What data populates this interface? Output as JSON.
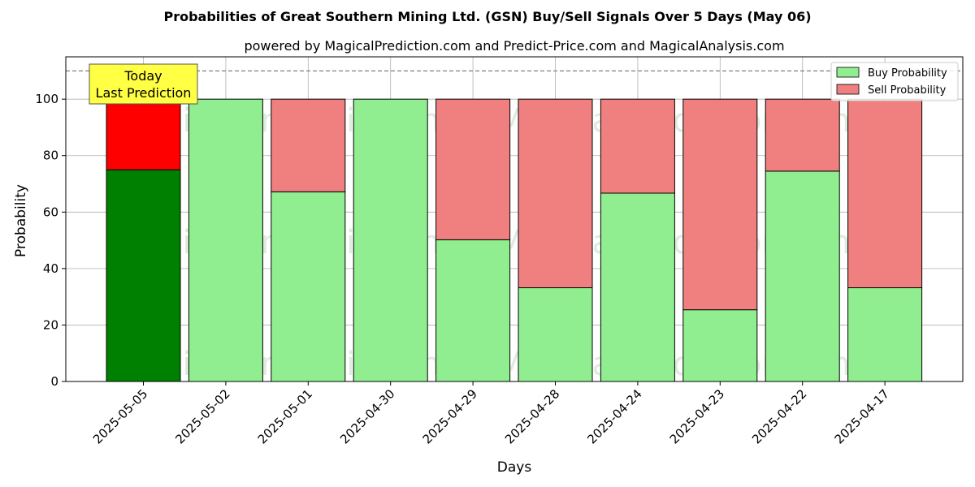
{
  "chart_data": {
    "type": "bar",
    "stacked": true,
    "title": "Probabilities of Great Southern Mining Ltd. (GSN) Buy/Sell Signals Over 5 Days (May 06)",
    "subtitle": "powered by MagicalPrediction.com and Predict-Price.com and MagicalAnalysis.com",
    "xlabel": "Days",
    "ylabel": "Probability",
    "ylim": [
      0,
      115
    ],
    "yticks": [
      0,
      20,
      40,
      60,
      80,
      100
    ],
    "reference_line": 110,
    "grid": true,
    "legend_position": "top-right",
    "categories": [
      "2025-05-05",
      "2025-05-02",
      "2025-05-01",
      "2025-04-30",
      "2025-04-29",
      "2025-04-28",
      "2025-04-24",
      "2025-04-23",
      "2025-04-22",
      "2025-04-17"
    ],
    "series": [
      {
        "name": "Buy Probability",
        "values": [
          75,
          100,
          67.2,
          100,
          50.2,
          33.2,
          66.7,
          25.4,
          74.5,
          33.2
        ],
        "color": "#90ee90",
        "highlight_color": "#008000"
      },
      {
        "name": "Sell Probability",
        "values": [
          25,
          0,
          32.8,
          0,
          49.8,
          66.8,
          33.3,
          74.6,
          25.5,
          66.8
        ],
        "color": "#f08080",
        "highlight_color": "#ff0000"
      }
    ],
    "highlight_index": 0,
    "annotation": {
      "lines": [
        "Today",
        "Last Prediction"
      ],
      "color": "#ffff44"
    },
    "watermarks": [
      "MagicalAnalysis.com",
      "MagicalPrediction.com"
    ]
  }
}
